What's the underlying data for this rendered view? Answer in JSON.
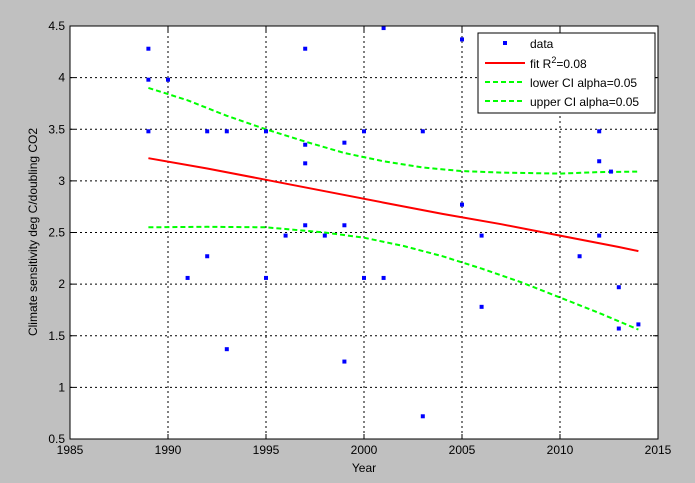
{
  "chart_data": {
    "type": "scatter",
    "title": "",
    "xlabel": "Year",
    "ylabel": "Climate sensitivity deg C/doubling CO2",
    "xlim": [
      1985,
      2015
    ],
    "ylim": [
      0.5,
      4.5
    ],
    "xticks": [
      1985,
      1990,
      1995,
      2000,
      2005,
      2010,
      2015
    ],
    "yticks": [
      0.5,
      1,
      1.5,
      2,
      2.5,
      3,
      3.5,
      4,
      4.5
    ],
    "xtick_labels": [
      "1985",
      "1990",
      "1995",
      "2000",
      "2005",
      "2010",
      "2015"
    ],
    "ytick_labels": [
      "0.5",
      "1",
      "1.5",
      "2",
      "2.5",
      "3",
      "3.5",
      "4",
      "4.5"
    ],
    "grid": true,
    "legend_position": "top-right",
    "legend": [
      {
        "label": "data",
        "label_sup": "",
        "label_after": "",
        "style": "marker",
        "color": "#0000ff"
      },
      {
        "label": "fit R",
        "label_sup": "2",
        "label_after": "=0.08",
        "style": "solid",
        "color": "#ff0000"
      },
      {
        "label": "lower CI alpha=0.05",
        "label_sup": "",
        "label_after": "",
        "style": "dashed",
        "color": "#00ff00"
      },
      {
        "label": "upper CI alpha=0.05",
        "label_sup": "",
        "label_after": "",
        "style": "dashed",
        "color": "#00ff00"
      }
    ],
    "series": [
      {
        "kind": "scatter",
        "color": "#0000ff",
        "points": [
          [
            1989,
            4.28
          ],
          [
            1989,
            3.98
          ],
          [
            1989,
            3.48
          ],
          [
            1990,
            3.98
          ],
          [
            1991,
            2.06
          ],
          [
            1992,
            3.48
          ],
          [
            1992,
            2.27
          ],
          [
            1993,
            3.48
          ],
          [
            1993,
            1.37
          ],
          [
            1995,
            3.48
          ],
          [
            1995,
            2.06
          ],
          [
            1996,
            2.47
          ],
          [
            1997,
            4.28
          ],
          [
            1997,
            3.35
          ],
          [
            1997,
            3.17
          ],
          [
            1997,
            2.57
          ],
          [
            1998,
            2.47
          ],
          [
            1999,
            3.37
          ],
          [
            1999,
            2.57
          ],
          [
            1999,
            1.25
          ],
          [
            2000,
            3.48
          ],
          [
            2000,
            2.06
          ],
          [
            2001,
            4.48
          ],
          [
            2001,
            2.06
          ],
          [
            2003,
            3.48
          ],
          [
            2003,
            0.72
          ],
          [
            2005,
            4.37
          ],
          [
            2005,
            2.77
          ],
          [
            2006,
            2.47
          ],
          [
            2006,
            1.78
          ],
          [
            2011,
            2.27
          ],
          [
            2012,
            3.48
          ],
          [
            2012,
            3.19
          ],
          [
            2012,
            2.47
          ],
          [
            2012.6,
            3.09
          ],
          [
            2013,
            1.97
          ],
          [
            2013,
            1.57
          ],
          [
            2014,
            1.61
          ]
        ]
      },
      {
        "kind": "line",
        "style": "solid",
        "color": "#ff0000",
        "points": [
          [
            1989,
            3.22
          ],
          [
            1992,
            3.12
          ],
          [
            1995,
            3.01
          ],
          [
            1998,
            2.9
          ],
          [
            2001,
            2.79
          ],
          [
            2004,
            2.68
          ],
          [
            2007,
            2.58
          ],
          [
            2010,
            2.47
          ],
          [
            2013,
            2.36
          ],
          [
            2014,
            2.32
          ]
        ]
      },
      {
        "kind": "line",
        "style": "dashed",
        "color": "#00ff00",
        "points": [
          [
            1989,
            2.55
          ],
          [
            1992,
            2.555
          ],
          [
            1995,
            2.55
          ],
          [
            1998,
            2.5
          ],
          [
            2000,
            2.45
          ],
          [
            2002,
            2.37
          ],
          [
            2004,
            2.27
          ],
          [
            2006,
            2.15
          ],
          [
            2008,
            2.02
          ],
          [
            2010,
            1.87
          ],
          [
            2012,
            1.72
          ],
          [
            2014,
            1.56
          ]
        ]
      },
      {
        "kind": "line",
        "style": "dashed",
        "color": "#00ff00",
        "points": [
          [
            1989,
            3.9
          ],
          [
            1991,
            3.78
          ],
          [
            1993,
            3.63
          ],
          [
            1995,
            3.5
          ],
          [
            1997,
            3.38
          ],
          [
            1999,
            3.27
          ],
          [
            2001,
            3.19
          ],
          [
            2003,
            3.13
          ],
          [
            2005,
            3.095
          ],
          [
            2007,
            3.08
          ],
          [
            2010,
            3.07
          ],
          [
            2012,
            3.085
          ],
          [
            2014,
            3.09
          ]
        ]
      }
    ]
  }
}
